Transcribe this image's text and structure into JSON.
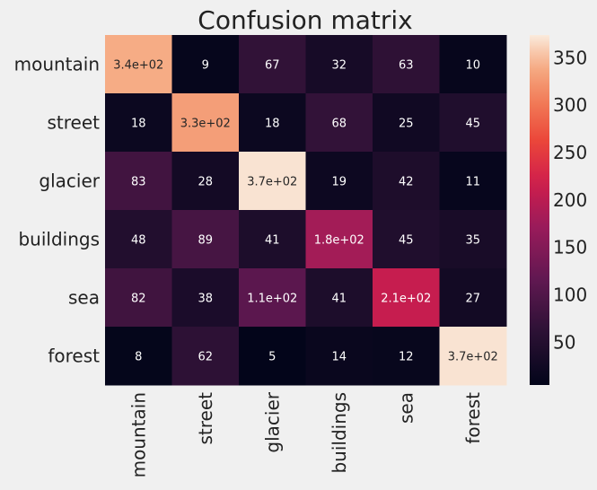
{
  "chart_data": {
    "type": "heatmap",
    "title": "Confusion matrix",
    "xlabel": "",
    "ylabel": "",
    "row_labels": [
      "mountain",
      "street",
      "glacier",
      "buildings",
      "sea",
      "forest"
    ],
    "col_labels": [
      "mountain",
      "street",
      "glacier",
      "buildings",
      "sea",
      "forest"
    ],
    "values": [
      [
        340,
        9,
        67,
        32,
        63,
        10
      ],
      [
        18,
        330,
        18,
        68,
        25,
        45
      ],
      [
        83,
        28,
        370,
        19,
        42,
        11
      ],
      [
        48,
        89,
        41,
        180,
        45,
        35
      ],
      [
        82,
        38,
        110,
        41,
        210,
        27
      ],
      [
        8,
        62,
        5,
        14,
        12,
        370
      ]
    ],
    "cell_labels": [
      [
        "3.4e+02",
        "9",
        "67",
        "32",
        "63",
        "10"
      ],
      [
        "18",
        "3.3e+02",
        "18",
        "68",
        "25",
        "45"
      ],
      [
        "83",
        "28",
        "3.7e+02",
        "19",
        "42",
        "11"
      ],
      [
        "48",
        "89",
        "41",
        "1.8e+02",
        "45",
        "35"
      ],
      [
        "82",
        "38",
        "1.1e+02",
        "41",
        "2.1e+02",
        "27"
      ],
      [
        "8",
        "62",
        "5",
        "14",
        "12",
        "3.7e+02"
      ]
    ],
    "colorbar": {
      "range": [
        5,
        374
      ],
      "ticks": [
        50,
        100,
        150,
        200,
        250,
        300,
        350
      ],
      "colormap": "rocket"
    }
  }
}
